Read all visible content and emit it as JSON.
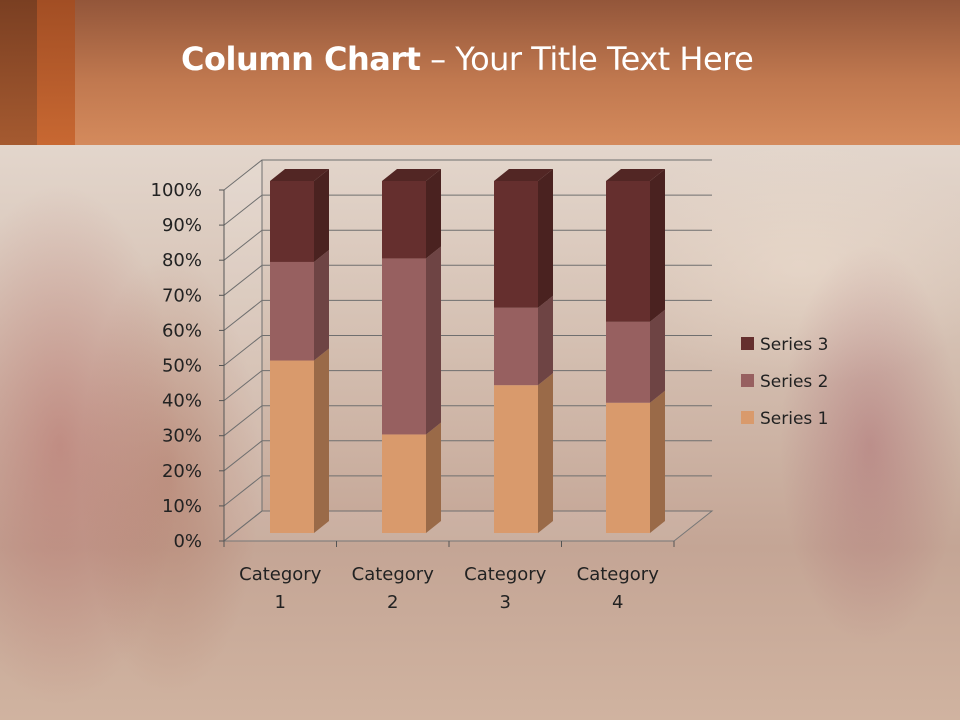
{
  "slide": {
    "title_bold": "Column Chart",
    "title_sep": " – ",
    "title_rest": "Your Title Text Here"
  },
  "chart_data": {
    "type": "bar",
    "stacked": "percent",
    "three_d": true,
    "title": "",
    "categories": [
      "Category 1",
      "Category 2",
      "Category 3",
      "Category 4"
    ],
    "category_lines": [
      [
        "Category",
        "1"
      ],
      [
        "Category",
        "2"
      ],
      [
        "Category",
        "3"
      ],
      [
        "Category",
        "4"
      ]
    ],
    "series": [
      {
        "name": "Series 1",
        "values": [
          49,
          28,
          42,
          37
        ],
        "color": "#d99a6c",
        "side": "#9a6a48",
        "top": "#c08358"
      },
      {
        "name": "Series 2",
        "values": [
          28,
          50,
          22,
          23
        ],
        "color": "#976060",
        "side": "#6e4444",
        "top": "#855050"
      },
      {
        "name": "Series 3",
        "values": [
          23,
          22,
          36,
          40
        ],
        "color": "#652f2e",
        "side": "#4a2220",
        "top": "#522624"
      }
    ],
    "ylim": [
      0,
      100
    ],
    "yticks": [
      "0%",
      "10%",
      "20%",
      "30%",
      "40%",
      "50%",
      "60%",
      "70%",
      "80%",
      "90%",
      "100%"
    ],
    "grid": true,
    "legend": "right"
  }
}
